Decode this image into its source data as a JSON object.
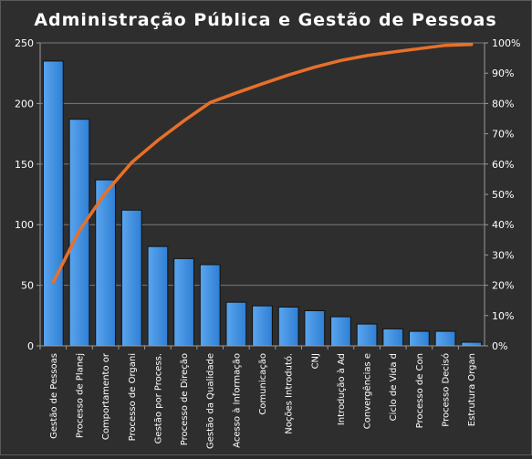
{
  "chart_data": {
    "type": "bar",
    "title": "Administração  Pública  e Gestão  de Pessoas",
    "categories": [
      "Gestão de Pessoas",
      "Processo de Planej",
      "Comportamento or",
      "Processo de Organi",
      "Gestão por Process.",
      "Processo de Direção",
      "Gestão da Qualidade",
      "Acesso à Informação",
      "Comunicação",
      "Noções Introdutó.",
      "CNJ",
      "Introdução à Ad",
      "Convergências e",
      "Ciclo de Vida d",
      "Processo de Con",
      "Processo Decisó",
      "Estrutura Organ"
    ],
    "series": [
      {
        "type": "bar",
        "values": [
          235,
          187,
          137,
          112,
          82,
          72,
          67,
          36,
          33,
          32,
          29,
          24,
          18,
          14,
          12,
          12,
          3
        ]
      },
      {
        "type": "line",
        "axis": "secondary",
        "values": [
          21.0,
          38.0,
          50.5,
          60.5,
          67.8,
          74.3,
          80.3,
          83.5,
          86.5,
          89.4,
          92.0,
          94.2,
          95.8,
          97.0,
          98.1,
          99.2,
          99.5
        ]
      }
    ],
    "ylim": [
      0,
      250
    ],
    "yticks": [
      0,
      50,
      100,
      150,
      200,
      250
    ],
    "y2lim": [
      0,
      100
    ],
    "y2ticks": [
      "0%",
      "10%",
      "20%",
      "30%",
      "40%",
      "50%",
      "60%",
      "70%",
      "80%",
      "90%",
      "100%"
    ],
    "grid": true,
    "colors": {
      "bar": "#3d8fe0",
      "bar_top": "#5aa5ee",
      "line": "#e8702a",
      "grid": "#7a7a7a",
      "background": "#2e2e2e"
    }
  }
}
